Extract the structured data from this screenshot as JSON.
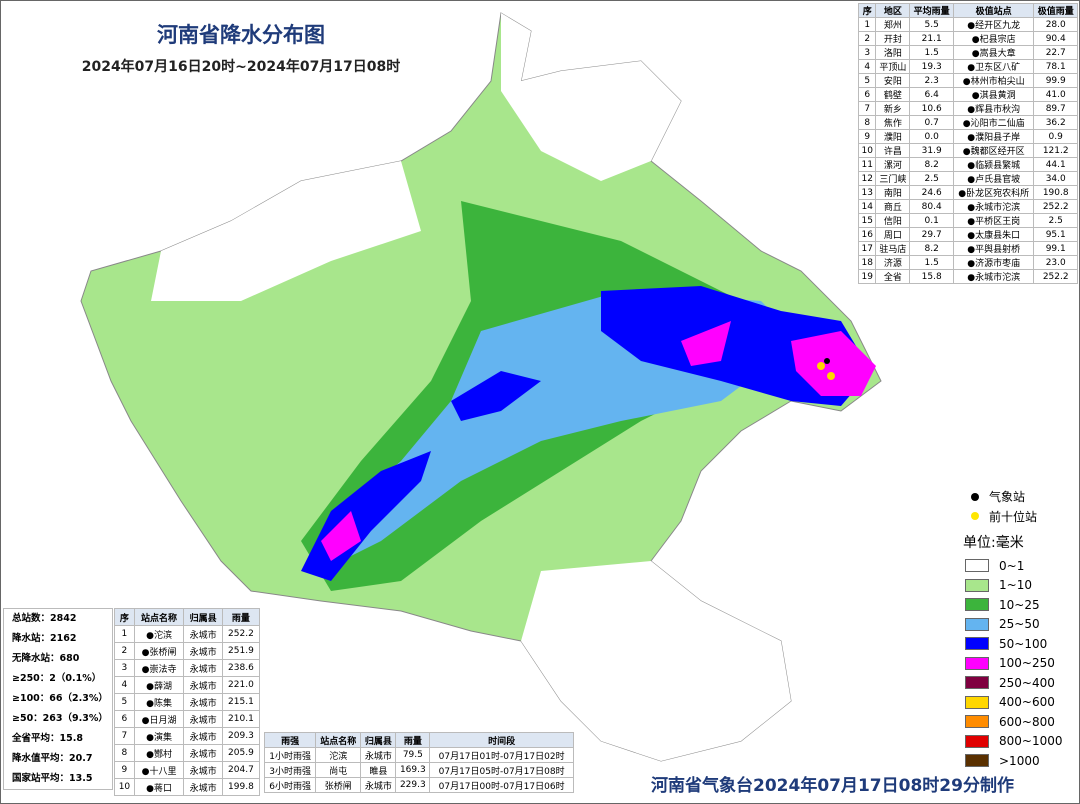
{
  "header": {
    "title": "河南省降水分布图",
    "subtitle": "2024年07月16日20时~2024年07月17日08时"
  },
  "region_table": {
    "columns": [
      "序",
      "地区",
      "平均雨量",
      "极值站点",
      "极值雨量"
    ],
    "rows": [
      [
        "1",
        "郑州",
        "5.5",
        "●经开区九龙",
        "28.0"
      ],
      [
        "2",
        "开封",
        "21.1",
        "●杞县宗店",
        "90.4"
      ],
      [
        "3",
        "洛阳",
        "1.5",
        "●嵩县大章",
        "22.7"
      ],
      [
        "4",
        "平顶山",
        "19.3",
        "●卫东区八矿",
        "78.1"
      ],
      [
        "5",
        "安阳",
        "2.3",
        "●林州市柏尖山",
        "99.9"
      ],
      [
        "6",
        "鹤壁",
        "6.4",
        "●淇县黄洞",
        "41.0"
      ],
      [
        "7",
        "新乡",
        "10.6",
        "●辉县市秋沟",
        "89.7"
      ],
      [
        "8",
        "焦作",
        "0.7",
        "●沁阳市二仙庙",
        "36.2"
      ],
      [
        "9",
        "濮阳",
        "0.0",
        "●濮阳县子岸",
        "0.9"
      ],
      [
        "10",
        "许昌",
        "31.9",
        "●魏都区经开区",
        "121.2"
      ],
      [
        "11",
        "漯河",
        "8.2",
        "●临颍县繁城",
        "44.1"
      ],
      [
        "12",
        "三门峡",
        "2.5",
        "●卢氏县官坡",
        "34.0"
      ],
      [
        "13",
        "南阳",
        "24.6",
        "●卧龙区宛农科所",
        "190.8"
      ],
      [
        "14",
        "商丘",
        "80.4",
        "●永城市沱滨",
        "252.2"
      ],
      [
        "15",
        "信阳",
        "0.1",
        "●平桥区王岗",
        "2.5"
      ],
      [
        "16",
        "周口",
        "29.7",
        "●太康县朱口",
        "95.1"
      ],
      [
        "17",
        "驻马店",
        "8.2",
        "●平舆县射桥",
        "99.1"
      ],
      [
        "18",
        "济源",
        "1.5",
        "●济源市枣庙",
        "23.0"
      ],
      [
        "19",
        "全省",
        "15.8",
        "●永城市沱滨",
        "252.2"
      ]
    ]
  },
  "summary": [
    "总站数：2842",
    "降水站：2162",
    "无降水站：680",
    "≥250：2（0.1%）",
    "≥100：66（2.3%）",
    "≥50：263（9.3%）",
    "全省平均：15.8",
    "降水值平均：20.7",
    "国家站平均：13.5"
  ],
  "top_stations": {
    "columns": [
      "序",
      "站点名称",
      "归属县",
      "雨量"
    ],
    "rows": [
      [
        "1",
        "●沱滨",
        "永城市",
        "252.2"
      ],
      [
        "2",
        "●张桥闸",
        "永城市",
        "251.9"
      ],
      [
        "3",
        "●崇法寺",
        "永城市",
        "238.6"
      ],
      [
        "4",
        "●薛湖",
        "永城市",
        "221.0"
      ],
      [
        "5",
        "●陈集",
        "永城市",
        "215.1"
      ],
      [
        "6",
        "●日月湖",
        "永城市",
        "210.1"
      ],
      [
        "7",
        "●演集",
        "永城市",
        "209.3"
      ],
      [
        "8",
        "●酂村",
        "永城市",
        "205.9"
      ],
      [
        "9",
        "●十八里",
        "永城市",
        "204.7"
      ],
      [
        "10",
        "●蒋口",
        "永城市",
        "199.8"
      ]
    ]
  },
  "intensity_table": {
    "columns": [
      "雨强",
      "站点名称",
      "归属县",
      "雨量",
      "时间段"
    ],
    "rows": [
      [
        "1小时雨强",
        "沱滨",
        "永城市",
        "79.5",
        "07月17日01时-07月17日02时"
      ],
      [
        "3小时雨强",
        "尚屯",
        "睢县",
        "169.3",
        "07月17日05时-07月17日08时"
      ],
      [
        "6小时雨强",
        "张桥闸",
        "永城市",
        "229.3",
        "07月17日00时-07月17日06时"
      ]
    ]
  },
  "legend": {
    "markers": [
      {
        "label": "气象站",
        "color": "#000000"
      },
      {
        "label": "前十位站",
        "color": "#ffe600"
      }
    ],
    "unit": "单位:毫米",
    "classes": [
      {
        "label": "0~1",
        "color": "#ffffff"
      },
      {
        "label": "1~10",
        "color": "#a8e68c"
      },
      {
        "label": "10~25",
        "color": "#3cb43c"
      },
      {
        "label": "25~50",
        "color": "#64b4f0"
      },
      {
        "label": "50~100",
        "color": "#0000ff"
      },
      {
        "label": "100~250",
        "color": "#ff00ff"
      },
      {
        "label": "250~400",
        "color": "#800040"
      },
      {
        "label": "400~600",
        "color": "#ffd700"
      },
      {
        "label": "600~800",
        "color": "#ff8c00"
      },
      {
        "label": "800~1000",
        "color": "#e00000"
      },
      {
        "label": ">1000",
        "color": "#5a3000"
      }
    ]
  },
  "footer": "河南省气象台2024年07月17日08时29分制作"
}
